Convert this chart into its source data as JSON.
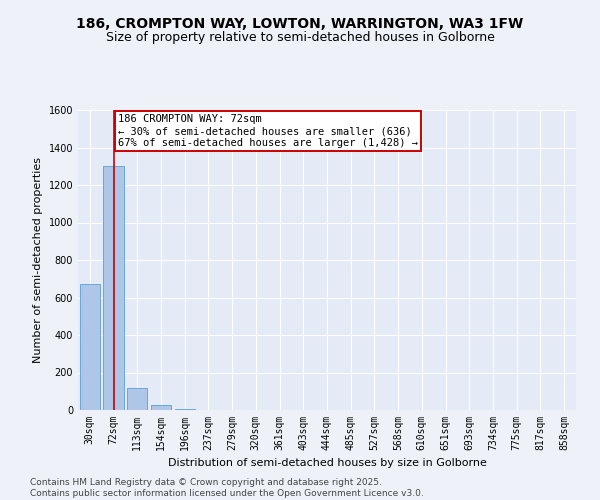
{
  "title_line1": "186, CROMPTON WAY, LOWTON, WARRINGTON, WA3 1FW",
  "title_line2": "Size of property relative to semi-detached houses in Golborne",
  "xlabel": "Distribution of semi-detached houses by size in Golborne",
  "ylabel": "Number of semi-detached properties",
  "categories": [
    "30sqm",
    "72sqm",
    "113sqm",
    "154sqm",
    "196sqm",
    "237sqm",
    "279sqm",
    "320sqm",
    "361sqm",
    "403sqm",
    "444sqm",
    "485sqm",
    "527sqm",
    "568sqm",
    "610sqm",
    "651sqm",
    "693sqm",
    "734sqm",
    "775sqm",
    "817sqm",
    "858sqm"
  ],
  "values": [
    670,
    1300,
    120,
    28,
    3,
    0,
    0,
    0,
    0,
    0,
    0,
    0,
    0,
    0,
    0,
    0,
    0,
    0,
    0,
    0,
    0
  ],
  "bar_color": "#aec6e8",
  "bar_edge_color": "#5a9fd4",
  "highlight_index": 1,
  "highlight_color": "#cc0000",
  "ylim": [
    0,
    1600
  ],
  "yticks": [
    0,
    200,
    400,
    600,
    800,
    1000,
    1200,
    1400,
    1600
  ],
  "annotation_title": "186 CROMPTON WAY: 72sqm",
  "annotation_line1": "← 30% of semi-detached houses are smaller (636)",
  "annotation_line2": "67% of semi-detached houses are larger (1,428) →",
  "annotation_box_color": "#cc0000",
  "footer_line1": "Contains HM Land Registry data © Crown copyright and database right 2025.",
  "footer_line2": "Contains public sector information licensed under the Open Government Licence v3.0.",
  "bg_color": "#eef2f8",
  "plot_bg_color": "#e4eaf6",
  "grid_color": "#ffffff",
  "title_fontsize": 10,
  "subtitle_fontsize": 9,
  "axis_label_fontsize": 8,
  "tick_fontsize": 7,
  "annotation_fontsize": 7.5,
  "footer_fontsize": 6.5
}
